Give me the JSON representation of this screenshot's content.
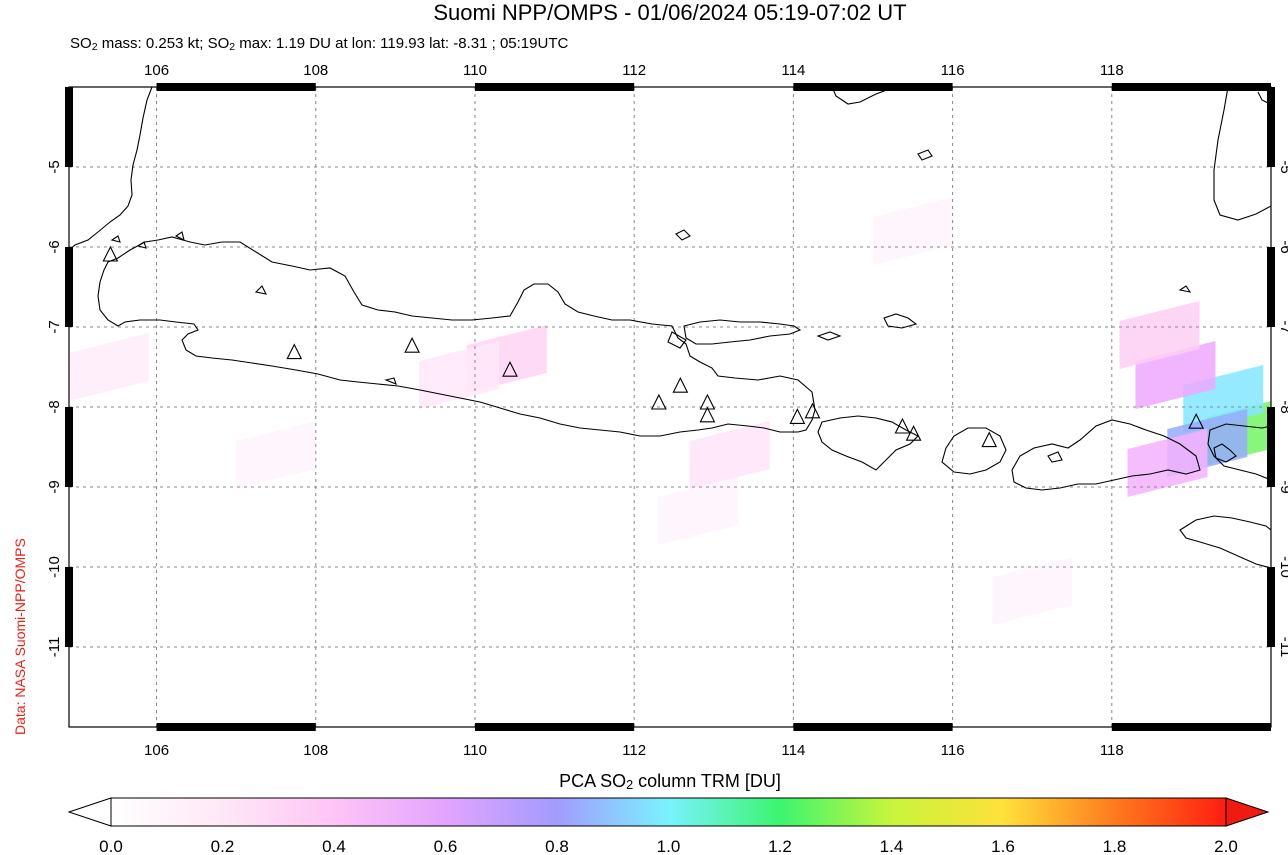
{
  "title": "Suomi NPP/OMPS - 01/06/2024 05:19-07:02 UT",
  "subtitle": {
    "part1": "SO",
    "sub": "2",
    "part2": " mass: 0.253 kt; SO",
    "sub2": "2",
    "part3": " max: 1.19 DU at lon: 119.93 lat: -8.31 ; 05:19UTC"
  },
  "credit": "Data: NASA Suomi-NPP/OMPS",
  "map": {
    "lon_range": [
      104.9,
      120.0
    ],
    "lat_range": [
      -12.0,
      -4.0
    ],
    "lon_ticks": [
      "106",
      "108",
      "110",
      "112",
      "114",
      "116",
      "118"
    ],
    "lon_tick_values": [
      106,
      108,
      110,
      112,
      114,
      116,
      118
    ],
    "lat_ticks": [
      "-5",
      "-6",
      "-7",
      "-8",
      "-9",
      "-10",
      "-11"
    ],
    "lat_tick_values": [
      -5,
      -6,
      -7,
      -8,
      -9,
      -10,
      -11
    ],
    "grid": true,
    "volcano_marker": "triangle-icon",
    "volcanoes": [
      {
        "lon": 105.42,
        "lat": -6.1
      },
      {
        "lon": 107.73,
        "lat": -7.32
      },
      {
        "lon": 109.21,
        "lat": -7.24
      },
      {
        "lon": 110.44,
        "lat": -7.54
      },
      {
        "lon": 112.31,
        "lat": -7.95
      },
      {
        "lon": 112.58,
        "lat": -7.74
      },
      {
        "lon": 112.92,
        "lat": -7.95
      },
      {
        "lon": 112.92,
        "lat": -8.11
      },
      {
        "lon": 114.05,
        "lat": -8.13
      },
      {
        "lon": 114.24,
        "lat": -8.06
      },
      {
        "lon": 115.37,
        "lat": -8.25
      },
      {
        "lon": 115.51,
        "lat": -8.34
      },
      {
        "lon": 116.46,
        "lat": -8.42
      },
      {
        "lon": 119.06,
        "lat": -8.19
      }
    ],
    "so2_pixels": [
      {
        "lon": 119.7,
        "lat": -8.3,
        "du": 1.19
      },
      {
        "lon": 119.4,
        "lat": -7.9,
        "du": 0.85
      },
      {
        "lon": 119.2,
        "lat": -8.45,
        "du": 0.7
      },
      {
        "lon": 118.8,
        "lat": -7.6,
        "du": 0.45
      },
      {
        "lon": 118.7,
        "lat": -8.7,
        "du": 0.4
      },
      {
        "lon": 118.6,
        "lat": -7.1,
        "du": 0.25
      },
      {
        "lon": 110.4,
        "lat": -7.4,
        "du": 0.22
      },
      {
        "lon": 109.8,
        "lat": -7.6,
        "du": 0.12
      },
      {
        "lon": 113.2,
        "lat": -8.6,
        "du": 0.14
      },
      {
        "lon": 105.4,
        "lat": -7.5,
        "du": 0.1
      },
      {
        "lon": 115.5,
        "lat": -5.8,
        "du": 0.06
      },
      {
        "lon": 112.8,
        "lat": -9.3,
        "du": 0.06
      },
      {
        "lon": 117.0,
        "lat": -10.3,
        "du": 0.05
      },
      {
        "lon": 107.5,
        "lat": -8.6,
        "du": 0.05
      }
    ]
  },
  "colorbar": {
    "title_part1": "PCA SO",
    "title_sub": "2",
    "title_part2": " column TRM [DU]",
    "tick_labels": [
      "0.0",
      "0.2",
      "0.4",
      "0.6",
      "0.8",
      "1.0",
      "1.2",
      "1.4",
      "1.6",
      "1.8",
      "2.0"
    ],
    "range": [
      0.0,
      2.0
    ],
    "colors": [
      "#ffffff",
      "#ffd4f4",
      "#f0a8ff",
      "#9c9cff",
      "#7ff6ff",
      "#39f57a",
      "#d9f53a",
      "#ffd330",
      "#ff6a1c",
      "#f01010"
    ]
  }
}
